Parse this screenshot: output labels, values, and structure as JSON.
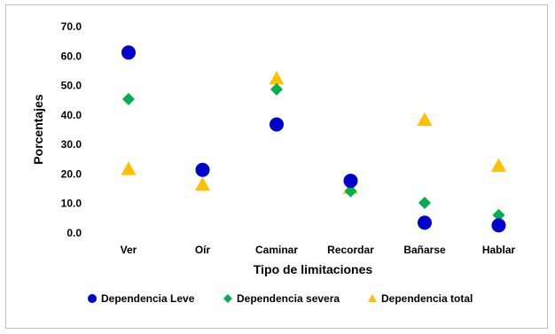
{
  "chart_data": {
    "type": "scatter",
    "categories": [
      "Ver",
      "Oír",
      "Caminar",
      "Recordar",
      "Bañarse",
      "Hablar"
    ],
    "series": [
      {
        "name": "Dependencia Leve",
        "marker": "circle",
        "color": "#0000cc",
        "values": [
          61.2,
          21.4,
          36.8,
          17.7,
          3.5,
          2.6
        ]
      },
      {
        "name": "Dependencia severa",
        "marker": "diamond",
        "color": "#00b050",
        "values": [
          45.4,
          21.4,
          48.7,
          14.2,
          10.2,
          6.1
        ]
      },
      {
        "name": "Dependencia total",
        "marker": "triangle",
        "color": "#ffc000",
        "values": [
          21.7,
          16.4,
          52.4,
          15.3,
          38.4,
          22.8
        ]
      }
    ],
    "xlabel": "Tipo de limitaciones",
    "ylabel": "Porcentajes",
    "ylim": [
      0,
      70
    ],
    "yticks": [
      "0.0",
      "10.0",
      "20.0",
      "30.0",
      "40.0",
      "50.0",
      "60.0",
      "70.0"
    ],
    "grid": false,
    "legend": "bottom"
  }
}
